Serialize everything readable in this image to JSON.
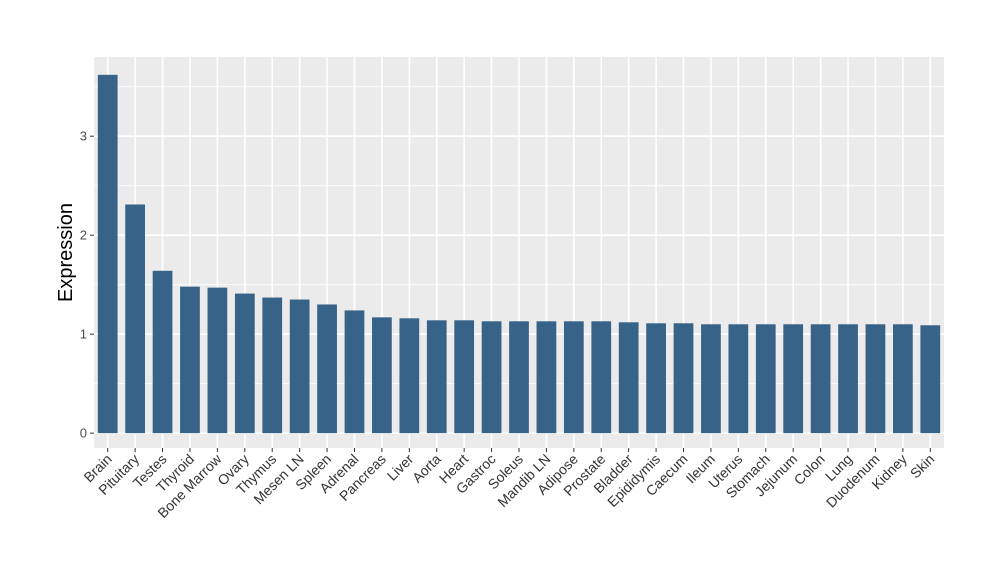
{
  "chart_data": {
    "type": "bar",
    "title": "",
    "xlabel": "",
    "ylabel": "Expression",
    "ylim": [
      -0.15,
      3.8
    ],
    "yticks": [
      0,
      1,
      2,
      3
    ],
    "grid": true,
    "bar_color": "#376389",
    "panel_color": "#ebebeb",
    "categories": [
      "Brain",
      "Pituitary",
      "Testes",
      "Thyroid",
      "Bone Marrow",
      "Ovary",
      "Thymus",
      "Mesen LN",
      "Spleen",
      "Adrenal",
      "Pancreas",
      "Liver",
      "Aorta",
      "Heart",
      "Gastroc",
      "Soleus",
      "Mandib LN",
      "Adipose",
      "Prostate",
      "Bladder",
      "Epididymis",
      "Caecum",
      "Ileum",
      "Uterus",
      "Stomach",
      "Jejunum",
      "Colon",
      "Lung",
      "Duodenum",
      "Kidney",
      "Skin"
    ],
    "values": [
      3.62,
      2.31,
      1.64,
      1.48,
      1.47,
      1.41,
      1.37,
      1.35,
      1.3,
      1.24,
      1.17,
      1.16,
      1.14,
      1.14,
      1.13,
      1.13,
      1.13,
      1.13,
      1.13,
      1.12,
      1.11,
      1.11,
      1.1,
      1.1,
      1.1,
      1.1,
      1.1,
      1.1,
      1.1,
      1.1,
      1.09
    ]
  }
}
